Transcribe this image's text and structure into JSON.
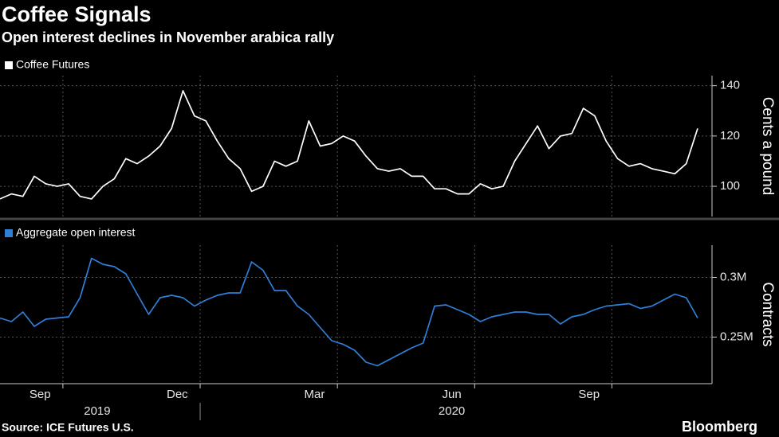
{
  "title": "Coffee Signals",
  "subtitle": "Open interest declines in November arabica rally",
  "source": "Source: ICE Futures U.S.",
  "logo": "Bloomberg",
  "chart_data": [
    {
      "type": "line",
      "ylabel": "Cents a pound",
      "x": [
        "2019-08",
        "2019-08",
        "2019-09",
        "2019-09",
        "2019-09",
        "2019-09",
        "2019-10",
        "2019-10",
        "2019-10",
        "2019-10",
        "2019-11",
        "2019-11",
        "2019-11",
        "2019-11",
        "2019-12",
        "2019-12",
        "2019-12",
        "2019-12",
        "2020-01",
        "2020-01",
        "2020-01",
        "2020-01",
        "2020-02",
        "2020-02",
        "2020-02",
        "2020-02",
        "2020-03",
        "2020-03",
        "2020-03",
        "2020-03",
        "2020-04",
        "2020-04",
        "2020-04",
        "2020-04",
        "2020-05",
        "2020-05",
        "2020-05",
        "2020-05",
        "2020-06",
        "2020-06",
        "2020-06",
        "2020-06",
        "2020-07",
        "2020-07",
        "2020-07",
        "2020-07",
        "2020-08",
        "2020-08",
        "2020-08",
        "2020-08",
        "2020-09",
        "2020-09",
        "2020-09",
        "2020-09",
        "2020-10",
        "2020-10",
        "2020-10",
        "2020-10",
        "2020-11",
        "2020-11",
        "2020-11",
        "2020-11"
      ],
      "series": [
        {
          "name": "Coffee Futures",
          "color": "#ffffff",
          "values": [
            95,
            97,
            96,
            104,
            101,
            100,
            101,
            96,
            95,
            100,
            103,
            111,
            109,
            112,
            116,
            123,
            138,
            128,
            126,
            118,
            111,
            107,
            98,
            100,
            110,
            108,
            110,
            126,
            116,
            117,
            120,
            118,
            112,
            107,
            106,
            107,
            104,
            104,
            99,
            99,
            97,
            97,
            101,
            99,
            100,
            110,
            117,
            124,
            115,
            120,
            121,
            131,
            128,
            118,
            111,
            108,
            109,
            107,
            106,
            105,
            109,
            123
          ]
        }
      ],
      "ylim": [
        88,
        144
      ],
      "yticks": [
        100,
        120,
        140
      ]
    },
    {
      "type": "line",
      "ylabel": "Contracts",
      "x": [
        "2019-08",
        "2019-08",
        "2019-09",
        "2019-09",
        "2019-09",
        "2019-09",
        "2019-10",
        "2019-10",
        "2019-10",
        "2019-10",
        "2019-11",
        "2019-11",
        "2019-11",
        "2019-11",
        "2019-12",
        "2019-12",
        "2019-12",
        "2019-12",
        "2020-01",
        "2020-01",
        "2020-01",
        "2020-01",
        "2020-02",
        "2020-02",
        "2020-02",
        "2020-02",
        "2020-03",
        "2020-03",
        "2020-03",
        "2020-03",
        "2020-04",
        "2020-04",
        "2020-04",
        "2020-04",
        "2020-05",
        "2020-05",
        "2020-05",
        "2020-05",
        "2020-06",
        "2020-06",
        "2020-06",
        "2020-06",
        "2020-07",
        "2020-07",
        "2020-07",
        "2020-07",
        "2020-08",
        "2020-08",
        "2020-08",
        "2020-08",
        "2020-09",
        "2020-09",
        "2020-09",
        "2020-09",
        "2020-10",
        "2020-10",
        "2020-10",
        "2020-10",
        "2020-11",
        "2020-11",
        "2020-11",
        "2020-11"
      ],
      "series": [
        {
          "name": "Aggregate open interest",
          "color": "#2f7fd8",
          "values": [
            266000,
            263000,
            271000,
            259000,
            265000,
            266000,
            267000,
            283000,
            316000,
            311000,
            309000,
            303000,
            286000,
            269000,
            283000,
            285000,
            283000,
            276000,
            281000,
            285000,
            287000,
            287000,
            313000,
            306000,
            289000,
            289000,
            276000,
            269000,
            258000,
            247000,
            244000,
            239000,
            229000,
            226000,
            231000,
            236000,
            241000,
            245000,
            276000,
            277000,
            273000,
            269000,
            263000,
            267000,
            269000,
            271000,
            271000,
            269000,
            269000,
            261000,
            267000,
            269000,
            273000,
            276000,
            277000,
            278000,
            274000,
            276000,
            281000,
            286000,
            283000,
            266000
          ]
        }
      ],
      "ylim": [
        211000,
        327000
      ],
      "yticks": [
        {
          "value": 300000,
          "label": "0.3M"
        },
        {
          "value": 250000,
          "label": "0.25M"
        }
      ],
      "xticks": [
        {
          "value": "2019-09",
          "label": "Sep"
        },
        {
          "value": "2019-12",
          "label": "Dec"
        },
        {
          "value": "2020-03",
          "label": "Mar"
        },
        {
          "value": "2020-06",
          "label": "Jun"
        },
        {
          "value": "2020-09",
          "label": "Sep"
        }
      ],
      "xgroups": [
        "2019",
        "2020"
      ]
    }
  ]
}
